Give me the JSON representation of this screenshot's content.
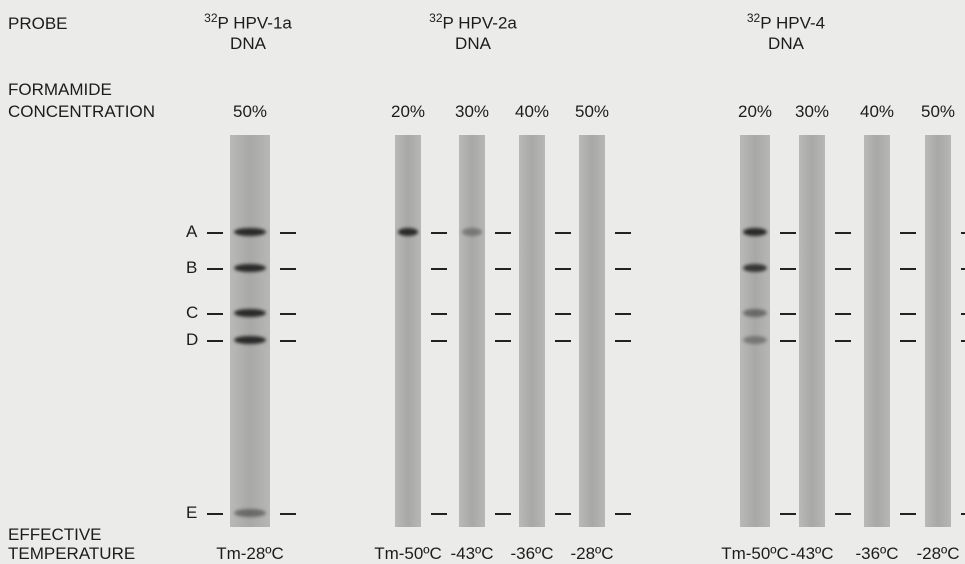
{
  "row_labels": {
    "probe": "PROBE",
    "formamide": [
      "FORMAMIDE",
      "CONCENTRATION"
    ],
    "temperature": [
      "EFFECTIVE",
      "TEMPERATURE"
    ]
  },
  "probes": [
    {
      "isotope": "32",
      "name": "P HPV-1a",
      "type": "DNA"
    },
    {
      "isotope": "32",
      "name": "P HPV-2a",
      "type": "DNA"
    },
    {
      "isotope": "32",
      "name": "P HPV-4",
      "type": "DNA"
    }
  ],
  "lanes": [
    {
      "concentration": "50%",
      "temperature": "Tm-28ºC"
    },
    {
      "concentration": "20%",
      "temperature": "Tm-50ºC"
    },
    {
      "concentration": "30%",
      "temperature": "-43ºC"
    },
    {
      "concentration": "40%",
      "temperature": "-36ºC"
    },
    {
      "concentration": "50%",
      "temperature": "-28ºC"
    },
    {
      "concentration": "20%",
      "temperature": "Tm-50ºC"
    },
    {
      "concentration": "30%",
      "temperature": "-43ºC"
    },
    {
      "concentration": "40%",
      "temperature": "-36ºC"
    },
    {
      "concentration": "50%",
      "temperature": "-28ºC"
    }
  ],
  "bands": [
    "A",
    "B",
    "C",
    "D",
    "E"
  ]
}
